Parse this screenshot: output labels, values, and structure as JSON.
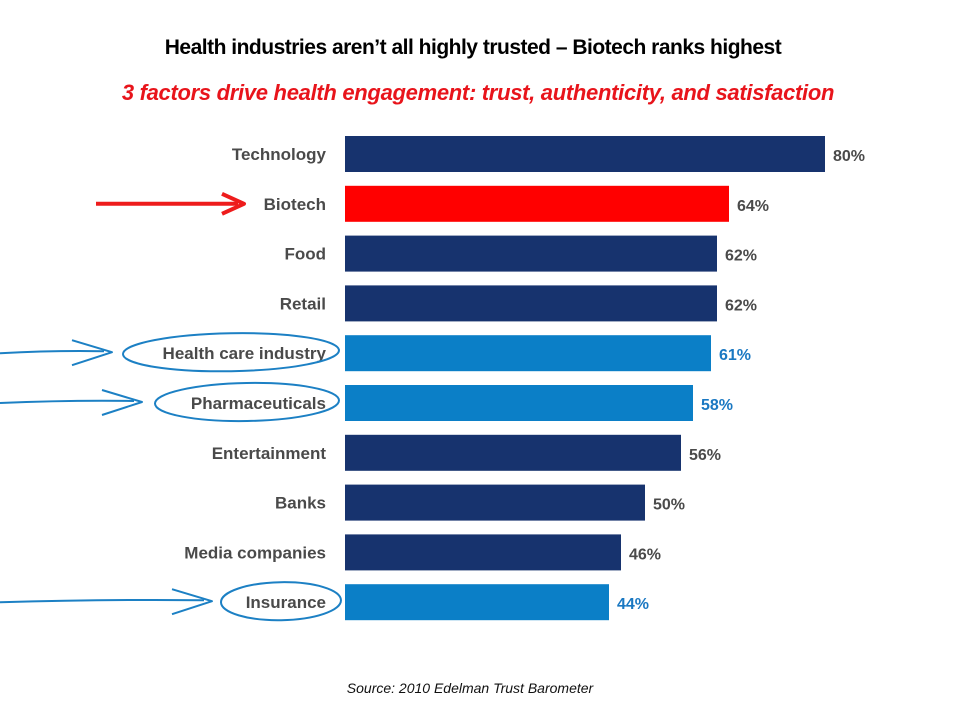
{
  "colors": {
    "default_bar": "#17336e",
    "highlight_bar": "#ff0000",
    "health_bar": "#0b7fc7",
    "default_text": "#4a4a4a",
    "health_text": "#1a78c2",
    "annotation_stroke": "#1c80c4",
    "arrow_red": "#ee1c1c"
  },
  "chart_data": {
    "type": "bar",
    "orientation": "horizontal",
    "title": "Health industries aren’t all highly trusted – Biotech ranks highest",
    "subtitle": "3 factors drive health engagement: trust, authenticity, and satisfaction",
    "source": "Source: 2010 Edelman Trust Barometer",
    "xlabel": "",
    "ylabel": "",
    "xlim": [
      0,
      100
    ],
    "grid": false,
    "legend": "none",
    "value_suffix": "%",
    "categories": [
      "Technology",
      "Biotech",
      "Food",
      "Retail",
      "Health care industry",
      "Pharmaceuticals",
      "Entertainment",
      "Banks",
      "Media companies",
      "Insurance"
    ],
    "values": [
      80,
      64,
      62,
      62,
      61,
      58,
      56,
      50,
      46,
      44
    ],
    "value_labels": [
      "80%",
      "64%",
      "62%",
      "62%",
      "61%",
      "58%",
      "56%",
      "50%",
      "46%",
      "44%"
    ],
    "groups": [
      "default",
      "highlight",
      "default",
      "default",
      "health",
      "health",
      "default",
      "default",
      "default",
      "health"
    ],
    "annotations": [
      {
        "type": "red-arrow",
        "target": "Biotech"
      },
      {
        "type": "circled-with-arrow",
        "target": "Health care industry"
      },
      {
        "type": "circled-with-arrow",
        "target": "Pharmaceuticals"
      },
      {
        "type": "circled-with-arrow",
        "target": "Insurance"
      }
    ]
  }
}
